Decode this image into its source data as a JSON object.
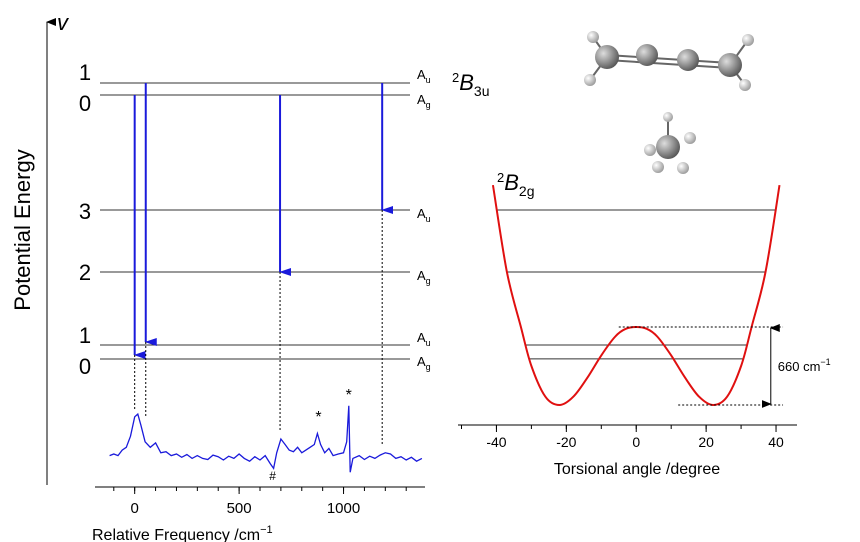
{
  "chart_data": [
    {
      "type": "energy-spectrum",
      "y_axis_label": "Potential Energy",
      "y_axis_symbol": "v",
      "x_label": {
        "text": "Relative Frequency /cm",
        "sup": "−1"
      },
      "upper_state": {
        "sup": "2",
        "main": "B",
        "sub": "3u"
      },
      "upper_levels": [
        {
          "v": "1",
          "sym": "A",
          "sub": "u"
        },
        {
          "v": "0",
          "sym": "A",
          "sub": "g"
        }
      ],
      "lower_levels": [
        {
          "v": "3",
          "sym": "A",
          "sub": "u"
        },
        {
          "v": "2",
          "sym": "A",
          "sub": "g"
        },
        {
          "v": "1",
          "sym": "A",
          "sub": "u"
        },
        {
          "v": "0",
          "sym": "A",
          "sub": "g"
        }
      ],
      "transitions": [
        0,
        53,
        696,
        1185
      ],
      "color": "#1a1adb",
      "x": [
        -120,
        -100,
        -80,
        -60,
        -40,
        -20,
        0,
        15,
        30,
        50,
        75,
        100,
        125,
        150,
        175,
        200,
        225,
        250,
        275,
        300,
        325,
        350,
        375,
        400,
        425,
        450,
        475,
        500,
        525,
        550,
        575,
        600,
        625,
        650,
        665,
        680,
        700,
        720,
        740,
        760,
        780,
        800,
        820,
        840,
        860,
        875,
        890,
        910,
        930,
        950,
        975,
        1000,
        1015,
        1025,
        1032,
        1045,
        1075,
        1100,
        1125,
        1150,
        1175,
        1200,
        1225,
        1250,
        1275,
        1300,
        1325,
        1350,
        1375
      ],
      "values": [
        0.05,
        0.08,
        0.05,
        0.15,
        0.2,
        0.4,
        0.75,
        0.8,
        0.6,
        0.3,
        0.2,
        0.28,
        0.1,
        0.12,
        0.05,
        0.08,
        0.02,
        0.07,
        0.0,
        0.05,
        0.0,
        -0.02,
        0.06,
        0.03,
        -0.03,
        0.04,
        0.0,
        0.08,
        0.0,
        -0.05,
        0.03,
        -0.03,
        0.05,
        -0.1,
        -0.18,
        0.1,
        0.35,
        0.25,
        0.15,
        0.12,
        0.2,
        0.1,
        0.15,
        0.2,
        0.25,
        0.45,
        0.25,
        0.1,
        0.18,
        0.05,
        0.08,
        0.1,
        0.3,
        0.95,
        -0.25,
        0.0,
        0.05,
        -0.02,
        0.04,
        0.0,
        0.06,
        0.1,
        0.08,
        0.0,
        0.03,
        -0.03,
        0.02,
        -0.05,
        0.0
      ],
      "markers": [
        {
          "text": "#",
          "x": 660
        },
        {
          "text": "*",
          "x": 880
        },
        {
          "text": "*",
          "x": 1025
        }
      ],
      "xlim": [
        -190,
        1390
      ],
      "xticks": [
        0,
        500,
        1000
      ],
      "ylim": [
        -0.3,
        1
      ]
    },
    {
      "type": "line",
      "state": {
        "sup": "2",
        "main": "B",
        "sub": "2g"
      },
      "x_label": "Torsional angle /degree",
      "color": "#e01010",
      "x": [
        -41,
        -37,
        -33,
        -30,
        -26,
        -22,
        -18,
        -14,
        -10,
        -6,
        -3,
        0,
        3,
        6,
        10,
        14,
        18,
        22,
        26,
        30,
        33,
        37,
        41
      ],
      "values": [
        1860,
        1125,
        660,
        330,
        70,
        0,
        70,
        230,
        420,
        580,
        645,
        660,
        645,
        580,
        420,
        230,
        70,
        0,
        70,
        330,
        660,
        1125,
        1860
      ],
      "levels": [
        1650,
        1125,
        508,
        390
      ],
      "barrier": {
        "value": 660,
        "label": "660 cm",
        "sup": "−1"
      },
      "xlim": [
        -51,
        46
      ],
      "xticks": [
        -40,
        -20,
        0,
        20,
        40
      ],
      "ylim": [
        -169,
        1988
      ]
    }
  ]
}
